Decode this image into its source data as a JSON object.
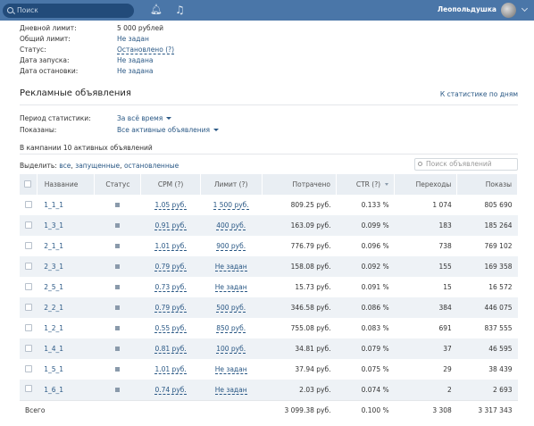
{
  "topbar": {
    "search_placeholder": "Поиск",
    "username": "Леопольдушка"
  },
  "info": [
    {
      "label": "Дневной лимит:",
      "value": "5 000 рублей"
    },
    {
      "label": "Общий лимит:",
      "value": "Не задан"
    },
    {
      "label": "Статус:",
      "value": "Остановлено (?)"
    },
    {
      "label": "Дата запуска:",
      "value": "Не задана"
    },
    {
      "label": "Дата остановки:",
      "value": "Не задана"
    }
  ],
  "ads_section": {
    "title": "Рекламные объявления",
    "stats_link": "К статистике по дням",
    "period_label": "Период статистики:",
    "period_value": "За всё время",
    "shown_label": "Показаны:",
    "shown_value": "Все активные объявления",
    "count_text": "В кампании 10 активных объявлений",
    "select_prefix": "Выделить:",
    "select_all": "все",
    "select_running": "запущенные",
    "select_stopped": "остановленные",
    "search_placeholder": "Поиск объявлений"
  },
  "table": {
    "headers": [
      "Название",
      "Статус",
      "CPM (?)",
      "Лимит (?)",
      "Потрачено",
      "CTR (?)",
      "Переходы",
      "Показы"
    ],
    "rows": [
      {
        "name": "1_1_1",
        "cpm": "1.05 руб.",
        "limit": "1 500 руб.",
        "spent": "809.25 руб.",
        "ctr": "0.133 %",
        "clicks": "1 074",
        "impressions": "805 690"
      },
      {
        "name": "1_3_1",
        "cpm": "0.91 руб.",
        "limit": "400 руб.",
        "spent": "163.09 руб.",
        "ctr": "0.099 %",
        "clicks": "183",
        "impressions": "185 264"
      },
      {
        "name": "2_1_1",
        "cpm": "1.01 руб.",
        "limit": "900 руб.",
        "spent": "776.79 руб.",
        "ctr": "0.096 %",
        "clicks": "738",
        "impressions": "769 102"
      },
      {
        "name": "2_3_1",
        "cpm": "0.79 руб.",
        "limit": "Не задан",
        "spent": "158.08 руб.",
        "ctr": "0.092 %",
        "clicks": "155",
        "impressions": "169 358"
      },
      {
        "name": "2_5_1",
        "cpm": "0.73 руб.",
        "limit": "Не задан",
        "spent": "15.73 руб.",
        "ctr": "0.091 %",
        "clicks": "15",
        "impressions": "16 572"
      },
      {
        "name": "2_2_1",
        "cpm": "0.79 руб.",
        "limit": "500 руб.",
        "spent": "346.58 руб.",
        "ctr": "0.086 %",
        "clicks": "384",
        "impressions": "446 075"
      },
      {
        "name": "1_2_1",
        "cpm": "0.55 руб.",
        "limit": "850 руб.",
        "spent": "755.08 руб.",
        "ctr": "0.083 %",
        "clicks": "691",
        "impressions": "837 555"
      },
      {
        "name": "1_4_1",
        "cpm": "0.81 руб.",
        "limit": "100 руб.",
        "spent": "34.81 руб.",
        "ctr": "0.079 %",
        "clicks": "37",
        "impressions": "46 595"
      },
      {
        "name": "1_5_1",
        "cpm": "1.01 руб.",
        "limit": "Не задан",
        "spent": "37.94 руб.",
        "ctr": "0.075 %",
        "clicks": "29",
        "impressions": "38 439"
      },
      {
        "name": "1_6_1",
        "cpm": "0.74 руб.",
        "limit": "Не задан",
        "spent": "2.03 руб.",
        "ctr": "0.074 %",
        "clicks": "2",
        "impressions": "2 693"
      }
    ],
    "total": {
      "label": "Всего",
      "spent": "3 099.38 руб.",
      "ctr": "0.100 %",
      "clicks": "3 308",
      "impressions": "3 317 343"
    }
  }
}
